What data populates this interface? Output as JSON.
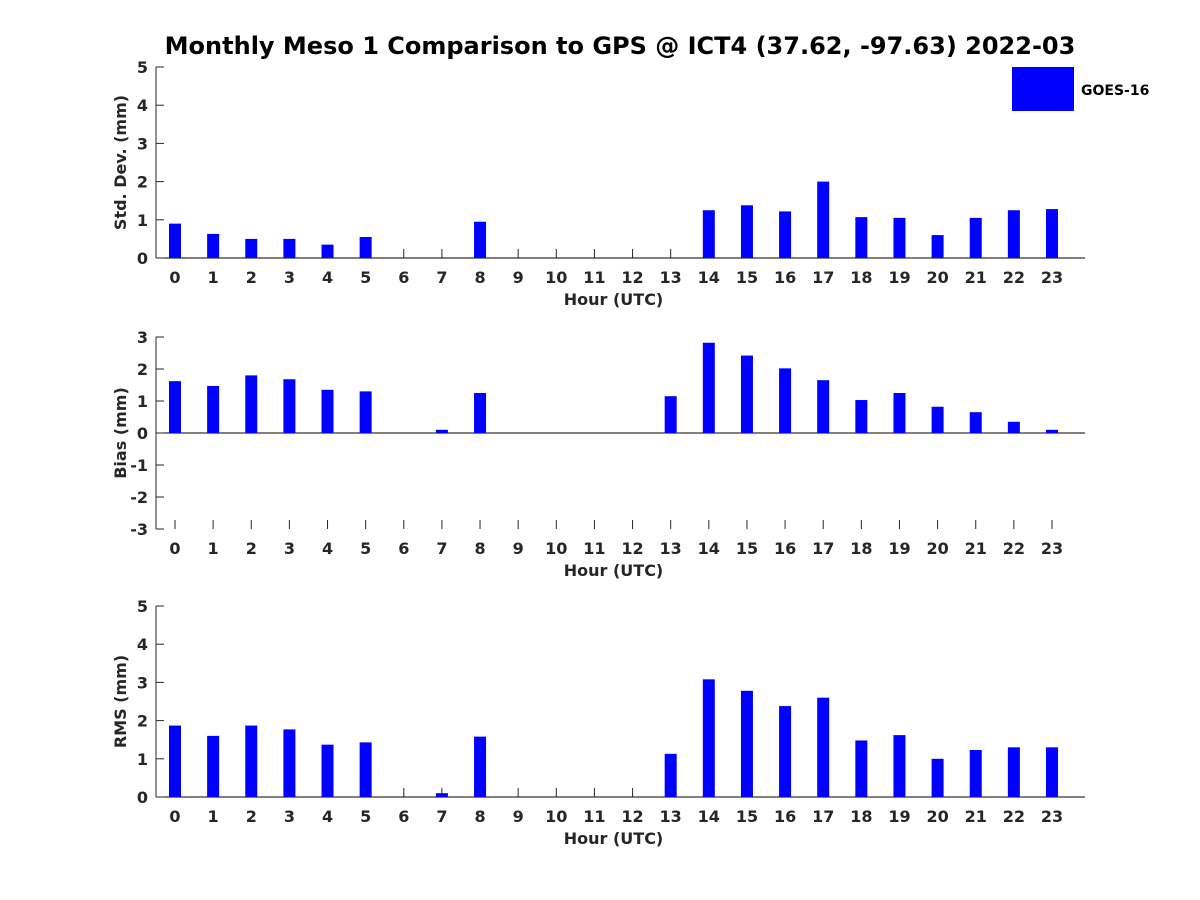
{
  "title": "Monthly Meso 1 Comparison to GPS @ ICT4 (37.62, -97.63) 2022-03",
  "legend": {
    "label": "GOES-16",
    "color": "#0000ff"
  },
  "chart_data": [
    {
      "type": "bar",
      "xlabel": "Hour (UTC)",
      "ylabel": "Std. Dev. (mm)",
      "ylim": [
        0,
        5
      ],
      "yticks": [
        "0",
        "1",
        "2",
        "3",
        "4",
        "5"
      ],
      "categories": [
        "0",
        "1",
        "2",
        "3",
        "4",
        "5",
        "6",
        "7",
        "8",
        "9",
        "10",
        "11",
        "12",
        "13",
        "14",
        "15",
        "16",
        "17",
        "18",
        "19",
        "20",
        "21",
        "22",
        "23"
      ],
      "series": [
        {
          "name": "GOES-16",
          "values": [
            0.9,
            0.63,
            0.5,
            0.5,
            0.35,
            0.55,
            null,
            null,
            0.95,
            null,
            null,
            null,
            null,
            null,
            1.25,
            1.38,
            1.22,
            2.0,
            1.07,
            1.05,
            0.6,
            1.05,
            1.25,
            1.28
          ]
        }
      ]
    },
    {
      "type": "bar",
      "xlabel": "Hour (UTC)",
      "ylabel": "Bias (mm)",
      "ylim": [
        -3,
        3
      ],
      "yticks": [
        "-3",
        "-2",
        "-1",
        "0",
        "1",
        "2",
        "3"
      ],
      "categories": [
        "0",
        "1",
        "2",
        "3",
        "4",
        "5",
        "6",
        "7",
        "8",
        "9",
        "10",
        "11",
        "12",
        "13",
        "14",
        "15",
        "16",
        "17",
        "18",
        "19",
        "20",
        "21",
        "22",
        "23"
      ],
      "series": [
        {
          "name": "GOES-16",
          "values": [
            1.62,
            1.47,
            1.8,
            1.68,
            1.35,
            1.3,
            null,
            0.1,
            1.25,
            null,
            null,
            null,
            null,
            1.15,
            2.82,
            2.42,
            2.02,
            1.65,
            1.03,
            1.25,
            0.82,
            0.65,
            0.35,
            0.1
          ]
        }
      ]
    },
    {
      "type": "bar",
      "xlabel": "Hour (UTC)",
      "ylabel": "RMS (mm)",
      "ylim": [
        0,
        5
      ],
      "yticks": [
        "0",
        "1",
        "2",
        "3",
        "4",
        "5"
      ],
      "categories": [
        "0",
        "1",
        "2",
        "3",
        "4",
        "5",
        "6",
        "7",
        "8",
        "9",
        "10",
        "11",
        "12",
        "13",
        "14",
        "15",
        "16",
        "17",
        "18",
        "19",
        "20",
        "21",
        "22",
        "23"
      ],
      "series": [
        {
          "name": "GOES-16",
          "values": [
            1.87,
            1.6,
            1.87,
            1.77,
            1.37,
            1.43,
            null,
            0.1,
            1.58,
            null,
            null,
            null,
            null,
            1.13,
            3.08,
            2.78,
            2.38,
            2.6,
            1.48,
            1.62,
            1.0,
            1.23,
            1.3,
            1.3
          ]
        }
      ]
    }
  ]
}
